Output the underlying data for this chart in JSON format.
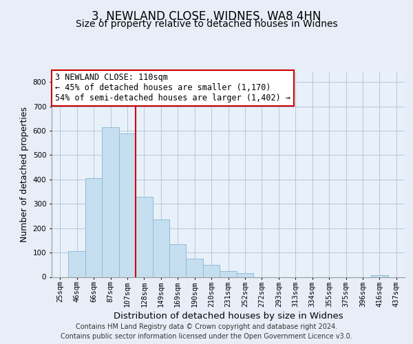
{
  "title": "3, NEWLAND CLOSE, WIDNES, WA8 4HN",
  "subtitle": "Size of property relative to detached houses in Widnes",
  "xlabel": "Distribution of detached houses by size in Widnes",
  "ylabel": "Number of detached properties",
  "categories": [
    "25sqm",
    "46sqm",
    "66sqm",
    "87sqm",
    "107sqm",
    "128sqm",
    "149sqm",
    "169sqm",
    "190sqm",
    "210sqm",
    "231sqm",
    "252sqm",
    "272sqm",
    "293sqm",
    "313sqm",
    "334sqm",
    "355sqm",
    "375sqm",
    "396sqm",
    "416sqm",
    "437sqm"
  ],
  "values": [
    0,
    105,
    405,
    615,
    590,
    330,
    235,
    135,
    75,
    50,
    25,
    15,
    0,
    0,
    0,
    0,
    0,
    0,
    0,
    8,
    0
  ],
  "bar_color": "#c5dff0",
  "bar_edge_color": "#8fbcd4",
  "vline_x_index": 4,
  "vline_color": "#cc0000",
  "annotation_line1": "3 NEWLAND CLOSE: 110sqm",
  "annotation_line2": "← 45% of detached houses are smaller (1,170)",
  "annotation_line3": "54% of semi-detached houses are larger (1,402) →",
  "ylim": [
    0,
    840
  ],
  "yticks": [
    0,
    100,
    200,
    300,
    400,
    500,
    600,
    700,
    800
  ],
  "footer_line1": "Contains HM Land Registry data © Crown copyright and database right 2024.",
  "footer_line2": "Contains public sector information licensed under the Open Government Licence v3.0.",
  "background_color": "#e8eef8",
  "plot_bg_color": "#e8f0fa",
  "title_fontsize": 12,
  "subtitle_fontsize": 10,
  "axis_label_fontsize": 9,
  "tick_fontsize": 7.5,
  "annotation_fontsize": 8.5,
  "footer_fontsize": 7
}
